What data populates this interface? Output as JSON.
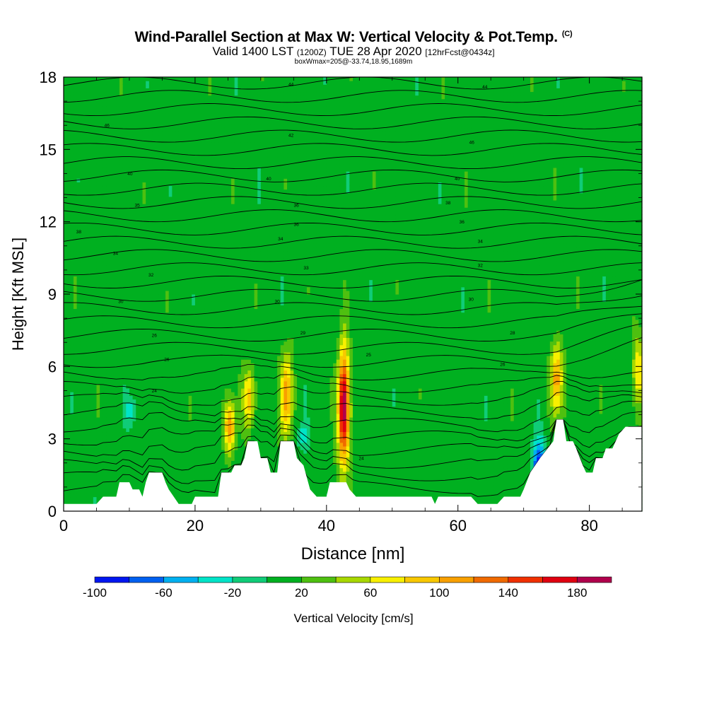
{
  "title": {
    "main": "Wind-Parallel Section at Max W: Vertical Velocity & Pot.Temp.",
    "copyright": "(C)",
    "valid": "Valid 1400 LST",
    "utc": "(1200Z)",
    "date": "TUE 28 Apr 2020",
    "fcst": "[12hrFcst@0434z]",
    "line3": "boxWmax=205@-33.74,18.95,1689m"
  },
  "chart_data": {
    "type": "heatmap",
    "xlabel": "Distance [nm]",
    "ylabel": "Height [Kft MSL]",
    "xlim": [
      0,
      88
    ],
    "ylim": [
      0,
      18
    ],
    "xticks": [
      0,
      20,
      40,
      60,
      80
    ],
    "yticks": [
      0,
      3,
      6,
      9,
      12,
      15,
      18
    ],
    "colorbar": {
      "label": "Vertical Velocity [cm/s]",
      "ticks": [
        -100,
        -60,
        -20,
        20,
        60,
        100,
        140,
        180
      ],
      "bins": [
        -100,
        -80,
        -60,
        -40,
        -20,
        0,
        20,
        40,
        60,
        80,
        100,
        120,
        140,
        160,
        180,
        200
      ],
      "colors": [
        "#0016f0",
        "#0060f0",
        "#00b0f0",
        "#00e4c8",
        "#10cc78",
        "#00b020",
        "#4ec010",
        "#a8d800",
        "#f8f000",
        "#f8c800",
        "#f8a000",
        "#f06a00",
        "#f03000",
        "#e00010",
        "#b0004c"
      ]
    },
    "background_w_cm_s": 10,
    "updrafts": [
      {
        "x": 25.3,
        "z_low": 2.4,
        "z_high": 4.6,
        "w_max": 110
      },
      {
        "x": 28.2,
        "z_low": 3.4,
        "z_high": 6.0,
        "w_max": 95
      },
      {
        "x": 33.9,
        "z_low": 3.0,
        "z_high": 6.6,
        "w_max": 115
      },
      {
        "x": 42.6,
        "z_low": 1.8,
        "z_high": 6.8,
        "w_max": 205
      },
      {
        "x": 75.0,
        "z_low": 4.0,
        "z_high": 7.0,
        "w_max": 110
      },
      {
        "x": 87.5,
        "z_low": 4.3,
        "z_high": 7.4,
        "w_max": 75
      }
    ],
    "downdrafts": [
      {
        "x": 72.3,
        "z_low": 0.6,
        "z_high": 3.0,
        "w_min": -95
      },
      {
        "x": 10.2,
        "z_low": 3.6,
        "z_high": 4.8,
        "w_min": -30
      },
      {
        "x": 36.5,
        "z_low": 2.6,
        "z_high": 3.6,
        "w_min": -30
      }
    ],
    "terrain_kft": [
      [
        0,
        0.3
      ],
      [
        5,
        0.3
      ],
      [
        6,
        0.6
      ],
      [
        8,
        0.6
      ],
      [
        8.5,
        1.2
      ],
      [
        10,
        1.2
      ],
      [
        10.5,
        0.9
      ],
      [
        11.5,
        0.9
      ],
      [
        12,
        0.6
      ],
      [
        12.5,
        1.2
      ],
      [
        13,
        1.6
      ],
      [
        15,
        1.6
      ],
      [
        15.5,
        1.2
      ],
      [
        16,
        0.9
      ],
      [
        17.5,
        0.3
      ],
      [
        19.5,
        0.3
      ],
      [
        20,
        0.6
      ],
      [
        23.5,
        0.6
      ],
      [
        24,
        1.6
      ],
      [
        25.5,
        1.6
      ],
      [
        26,
        1.9
      ],
      [
        27,
        1.9
      ],
      [
        27.5,
        2.2
      ],
      [
        28,
        2.9
      ],
      [
        29.5,
        2.9
      ],
      [
        30,
        2.2
      ],
      [
        31,
        2.2
      ],
      [
        31.5,
        1.6
      ],
      [
        32.5,
        1.6
      ],
      [
        33,
        2.9
      ],
      [
        35,
        2.9
      ],
      [
        35.5,
        2.2
      ],
      [
        36.5,
        1.9
      ],
      [
        37.5,
        0.9
      ],
      [
        38.5,
        0.6
      ],
      [
        40,
        0.6
      ],
      [
        40.5,
        1.2
      ],
      [
        43,
        1.2
      ],
      [
        43.5,
        0.9
      ],
      [
        44.5,
        0.6
      ],
      [
        56,
        0.6
      ],
      [
        56.5,
        0.3
      ],
      [
        57,
        0.6
      ],
      [
        62,
        0.6
      ],
      [
        63,
        0.3
      ],
      [
        66,
        0.3
      ],
      [
        67,
        0.6
      ],
      [
        69.5,
        0.6
      ],
      [
        70,
        0.9
      ],
      [
        71,
        1.6
      ],
      [
        72.5,
        2.2
      ],
      [
        74.5,
        2.9
      ],
      [
        75,
        3.8
      ],
      [
        76,
        3.8
      ],
      [
        76.5,
        2.9
      ],
      [
        77.5,
        2.9
      ],
      [
        78,
        2.6
      ],
      [
        79,
        1.9
      ],
      [
        79.5,
        1.6
      ],
      [
        80.5,
        1.6
      ],
      [
        81,
        2.2
      ],
      [
        82,
        2.2
      ],
      [
        82.5,
        2.6
      ],
      [
        83.5,
        2.6
      ],
      [
        84,
        2.9
      ],
      [
        84.5,
        3.2
      ],
      [
        85.5,
        3.5
      ],
      [
        88,
        3.5
      ]
    ],
    "theta_contours_c": [
      {
        "label": "24",
        "x": 13.8,
        "z": 5.0
      },
      {
        "label": "26",
        "x": 15.7,
        "z": 6.3
      },
      {
        "label": "26",
        "x": 13.8,
        "z": 7.3
      },
      {
        "label": "29",
        "x": 36.4,
        "z": 7.4
      },
      {
        "label": "25",
        "x": 46.4,
        "z": 6.5
      },
      {
        "label": "30",
        "x": 8.7,
        "z": 8.7
      },
      {
        "label": "30",
        "x": 32.5,
        "z": 8.7
      },
      {
        "label": "32",
        "x": 13.3,
        "z": 9.8
      },
      {
        "label": "33",
        "x": 36.9,
        "z": 10.1
      },
      {
        "label": "34",
        "x": 7.9,
        "z": 10.7
      },
      {
        "label": "34",
        "x": 33.0,
        "z": 11.3
      },
      {
        "label": "35",
        "x": 11.2,
        "z": 12.7
      },
      {
        "label": "36",
        "x": 35.4,
        "z": 11.9
      },
      {
        "label": "36",
        "x": 35.4,
        "z": 12.7
      },
      {
        "label": "38",
        "x": 2.3,
        "z": 11.6
      },
      {
        "label": "40",
        "x": 10.1,
        "z": 14.0
      },
      {
        "label": "40",
        "x": 31.2,
        "z": 13.8
      },
      {
        "label": "46",
        "x": 6.6,
        "z": 16.0
      },
      {
        "label": "42",
        "x": 34.6,
        "z": 15.6
      },
      {
        "label": "44",
        "x": 34.6,
        "z": 17.7
      },
      {
        "label": "44",
        "x": 64.1,
        "z": 17.6
      },
      {
        "label": "46",
        "x": 62.1,
        "z": 15.3
      },
      {
        "label": "40",
        "x": 59.9,
        "z": 13.8
      },
      {
        "label": "38",
        "x": 58.5,
        "z": 12.8
      },
      {
        "label": "36",
        "x": 60.6,
        "z": 12.0
      },
      {
        "label": "34",
        "x": 63.4,
        "z": 11.2
      },
      {
        "label": "32",
        "x": 63.4,
        "z": 10.2
      },
      {
        "label": "30",
        "x": 62.0,
        "z": 8.8
      },
      {
        "label": "28",
        "x": 68.3,
        "z": 7.4
      },
      {
        "label": "26",
        "x": 66.8,
        "z": 6.1
      },
      {
        "label": "24",
        "x": 45.3,
        "z": 2.2
      }
    ]
  }
}
